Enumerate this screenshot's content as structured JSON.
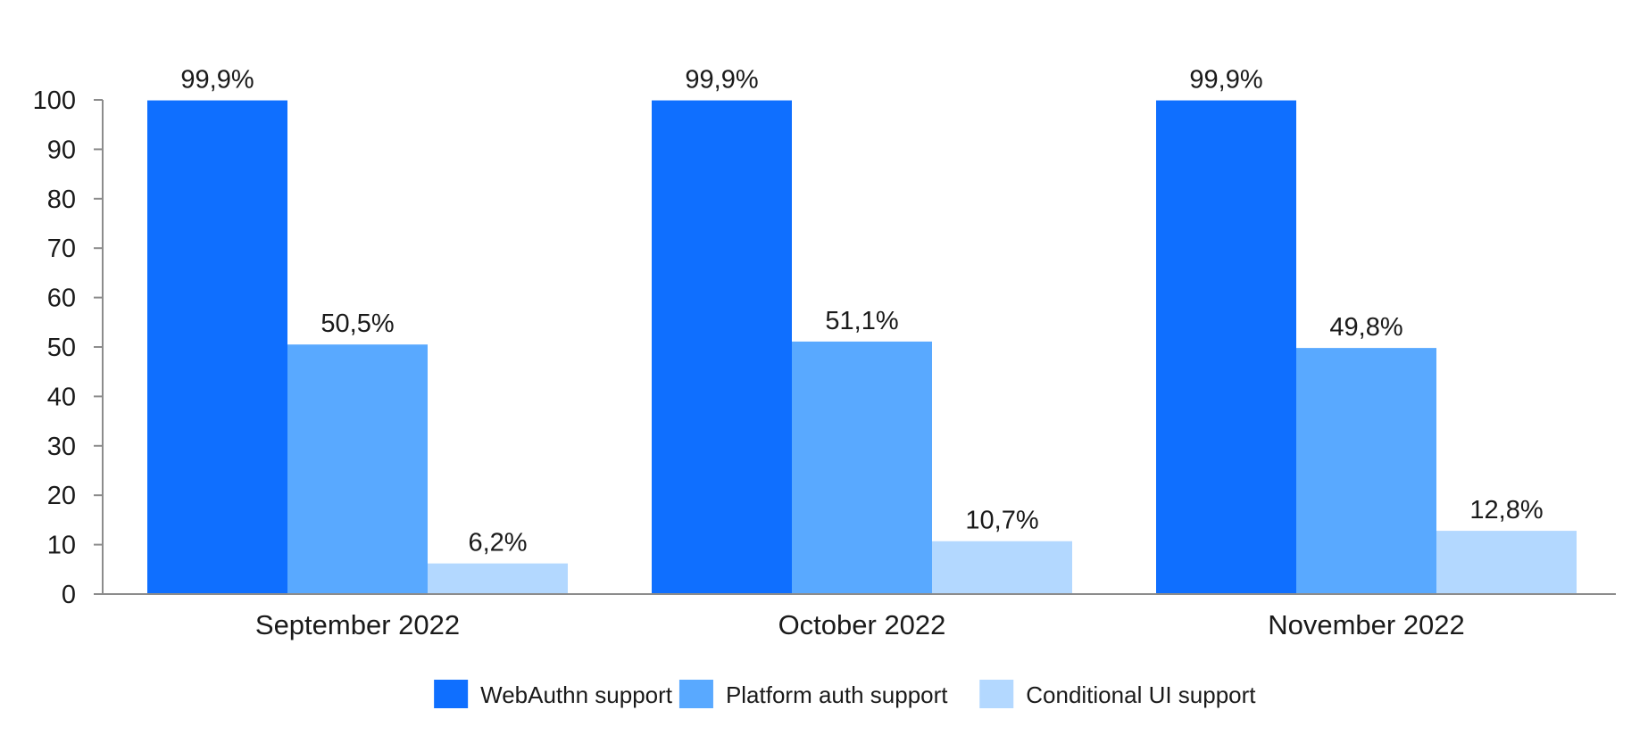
{
  "chart_data": {
    "type": "bar",
    "title": "",
    "xlabel": "",
    "ylabel": "",
    "ylim": [
      0,
      100
    ],
    "yticks": [
      0,
      10,
      20,
      30,
      40,
      50,
      60,
      70,
      80,
      90,
      100
    ],
    "grid": false,
    "legend_position": "bottom-center",
    "categories": [
      "September 2022",
      "October 2022",
      "November 2022"
    ],
    "series": [
      {
        "name": "WebAuthn support",
        "color": "#0F6FFF",
        "values": [
          99.9,
          99.9,
          99.9
        ],
        "labels": [
          "99,9%",
          "99,9%",
          "99,9%"
        ]
      },
      {
        "name": "Platform auth support",
        "color": "#59A9FF",
        "values": [
          50.5,
          51.1,
          49.8
        ],
        "labels": [
          "50,5%",
          "51,1%",
          "49,8%"
        ]
      },
      {
        "name": "Conditional UI support",
        "color": "#B3D8FF",
        "values": [
          6.2,
          10.7,
          12.8
        ],
        "labels": [
          "6,2%",
          "10,7%",
          "12,8%"
        ]
      }
    ]
  }
}
